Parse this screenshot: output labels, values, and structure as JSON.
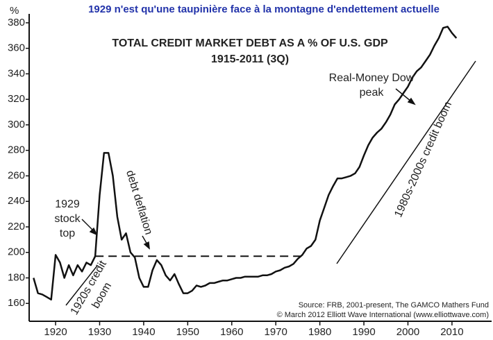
{
  "header": {
    "title": "1929 n'est qu'une taupinière face à la montagne d'endettement actuelle"
  },
  "chart_data": {
    "type": "line",
    "title": "TOTAL CREDIT MARKET DEBT AS A % OF U.S. GDP",
    "subtitle": "1915-2011 (3Q)",
    "y_unit": "%",
    "x": [
      1915,
      1916,
      1917,
      1918,
      1919,
      1920,
      1921,
      1922,
      1923,
      1924,
      1925,
      1926,
      1927,
      1928,
      1929,
      1930,
      1931,
      1932,
      1933,
      1934,
      1935,
      1936,
      1937,
      1938,
      1939,
      1940,
      1941,
      1942,
      1943,
      1944,
      1945,
      1946,
      1947,
      1948,
      1949,
      1950,
      1951,
      1952,
      1953,
      1954,
      1955,
      1956,
      1957,
      1958,
      1959,
      1960,
      1961,
      1962,
      1963,
      1964,
      1965,
      1966,
      1967,
      1968,
      1969,
      1970,
      1971,
      1972,
      1973,
      1974,
      1975,
      1976,
      1977,
      1978,
      1979,
      1980,
      1981,
      1982,
      1983,
      1984,
      1985,
      1986,
      1987,
      1988,
      1989,
      1990,
      1991,
      1992,
      1993,
      1994,
      1995,
      1996,
      1997,
      1998,
      1999,
      2000,
      2001,
      2002,
      2003,
      2004,
      2005,
      2006,
      2007,
      2008,
      2009,
      2010,
      2011
    ],
    "series": [
      {
        "name": "Total credit market debt",
        "color": "#111111",
        "values": [
          180,
          168,
          167,
          165,
          163,
          198,
          192,
          180,
          190,
          182,
          190,
          185,
          192,
          190,
          197,
          245,
          278,
          278,
          260,
          228,
          210,
          215,
          200,
          196,
          180,
          173,
          173,
          186,
          194,
          190,
          182,
          178,
          183,
          175,
          168,
          168,
          170,
          174,
          173,
          174,
          176,
          176,
          177,
          178,
          178,
          179,
          180,
          180,
          181,
          181,
          181,
          181,
          182,
          182,
          183,
          185,
          186,
          188,
          189,
          191,
          195,
          198,
          203,
          205,
          210,
          225,
          235,
          245,
          252,
          258,
          258,
          259,
          260,
          262,
          267,
          276,
          284,
          290,
          294,
          297,
          302,
          308,
          316,
          320,
          325,
          330,
          337,
          342,
          345,
          350,
          355,
          362,
          368,
          376,
          377,
          372,
          368
        ]
      }
    ],
    "reference_line": {
      "value": 197,
      "from": 1929,
      "to": 1976
    },
    "xlim": [
      1914,
      2019
    ],
    "ylim": [
      146,
      387
    ],
    "xticks": [
      1920,
      1930,
      1940,
      1950,
      1960,
      1970,
      1980,
      1990,
      2000,
      2010
    ],
    "yticks": [
      160,
      180,
      200,
      220,
      240,
      260,
      280,
      300,
      320,
      340,
      360,
      380
    ],
    "annotations": [
      {
        "lines": [
          "1929",
          "stock",
          "top"
        ]
      },
      {
        "lines": [
          "debt deflation"
        ]
      },
      {
        "lines": [
          "1920s credit",
          "boom"
        ]
      },
      {
        "lines": [
          "Real-Money Dow",
          "peak"
        ]
      },
      {
        "lines": [
          "1980s-2000s credit boom"
        ]
      }
    ],
    "source": [
      "Source: FRB, 2001-present, The GAMCO Mathers Fund",
      "© March 2012 Elliott Wave International (www.elliottwave.com)"
    ]
  }
}
